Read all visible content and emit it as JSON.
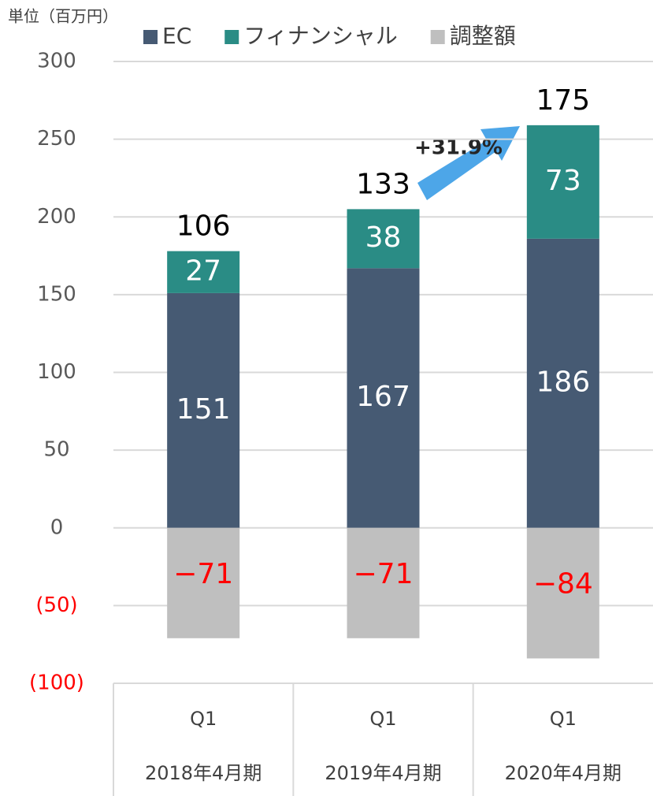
{
  "chart_data": {
    "type": "stacked_bar",
    "unit_label": "単位（百万円）",
    "categories": [
      "Q1",
      "Q1",
      "Q1"
    ],
    "groups": [
      "2018年4月期",
      "2019年4月期",
      "2020年4月期"
    ],
    "series": [
      {
        "name": "EC",
        "color": "#465a73",
        "values": [
          151,
          167,
          186
        ]
      },
      {
        "name": "フィナンシャル",
        "color": "#2a8c85",
        "values": [
          27,
          38,
          73
        ]
      },
      {
        "name": "調整額",
        "color": "#bfbfbf",
        "values": [
          -71,
          -71,
          -84
        ],
        "value_labels": [
          "−71",
          "−71",
          "−84"
        ]
      }
    ],
    "totals": [
      106,
      133,
      175
    ],
    "annotation": "+31.9%",
    "ylim": [
      -100,
      300
    ],
    "yticks": [
      {
        "value": -100,
        "label": "(100)"
      },
      {
        "value": -50,
        "label": "(50)"
      },
      0,
      50,
      100,
      150,
      200,
      250,
      300
    ],
    "grid": true
  }
}
